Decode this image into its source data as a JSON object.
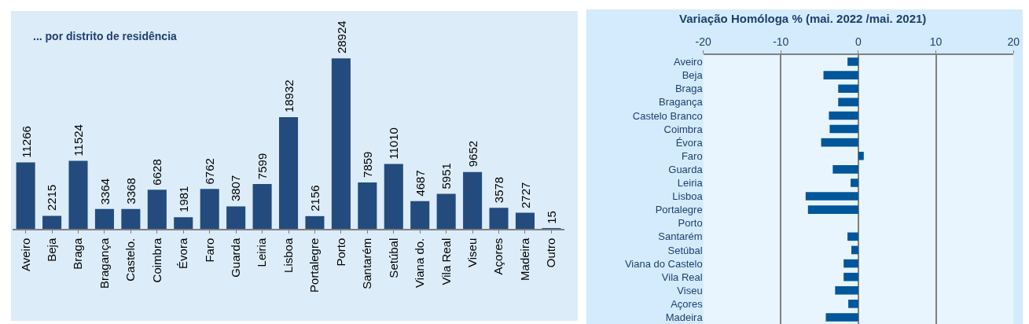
{
  "chart_data": [
    {
      "type": "bar",
      "title": "... por distrito de residência",
      "categories": [
        "Aveiro",
        "Beja",
        "Braga",
        "Bragança",
        "Castelo.",
        "Coimbra",
        "Évora",
        "Faro",
        "Guarda",
        "Leiria",
        "Lisboa",
        "Portalegre",
        "Porto",
        "Santarém",
        "Setúbal",
        "Viana do.",
        "Vila Real",
        "Viseu",
        "Açores",
        "Madeira",
        "Outro"
      ],
      "values": [
        11266,
        2215,
        11524,
        3364,
        3368,
        6628,
        1981,
        6762,
        3807,
        7599,
        18932,
        2156,
        28924,
        7859,
        11010,
        4687,
        5951,
        9652,
        3578,
        2727,
        15
      ],
      "color": "#234b7e",
      "data_labels": true
    },
    {
      "type": "bar",
      "orientation": "horizontal",
      "title": "Variação Homóloga % (mai. 2022 /mai. 2021)",
      "categories": [
        "Aveiro",
        "Beja",
        "Braga",
        "Bragança",
        "Castelo Branco",
        "Coimbra",
        "Évora",
        "Faro",
        "Guarda",
        "Leiria",
        "Lisboa",
        "Portalegre",
        "Porto",
        "Santarém",
        "Setúbal",
        "Viana do Castelo",
        "Vila Real",
        "Viseu",
        "Açores",
        "Madeira"
      ],
      "values": [
        -1.4,
        -4.5,
        -2.6,
        -2.6,
        -3.8,
        -3.7,
        -4.8,
        0.7,
        -3.3,
        -1.0,
        -6.8,
        -6.5,
        0,
        -1.4,
        -0.9,
        -1.9,
        -1.9,
        -3.0,
        -1.3,
        -4.2
      ],
      "color": "#00569b",
      "xlim": [
        -20,
        20
      ],
      "xticks": [
        -20,
        -10,
        0,
        10,
        20
      ],
      "grid": "x"
    }
  ]
}
